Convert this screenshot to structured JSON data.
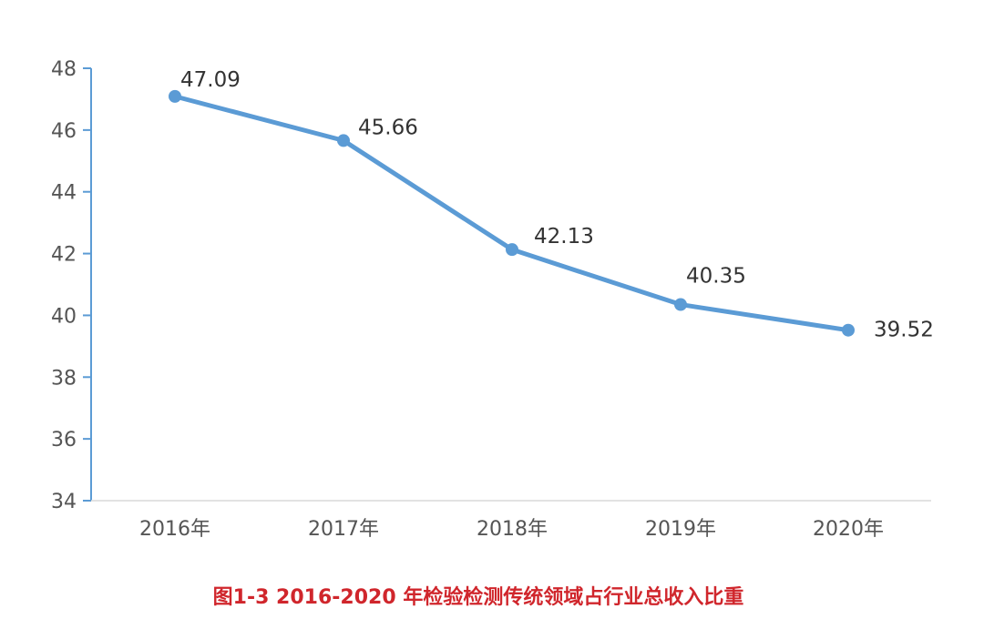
{
  "caption": "图1-3 2016-2020 年检验检测传统领域占行业总收入比重",
  "colors": {
    "series": "#5b9bd5",
    "axis": "#5b9bd5",
    "baseline": "#d9d9d9",
    "tick_text": "#555555",
    "label_text": "#333333",
    "caption": "#d0262c"
  },
  "chart_data": {
    "type": "line",
    "title": "",
    "xlabel": "",
    "ylabel": "",
    "categories": [
      "2016年",
      "2017年",
      "2018年",
      "2019年",
      "2020年"
    ],
    "series": [
      {
        "values": [
          47.09,
          45.66,
          42.13,
          40.35,
          39.52
        ],
        "labels": [
          "47.09",
          "45.66",
          "42.13",
          "40.35",
          "39.52"
        ]
      }
    ],
    "ylim": [
      34,
      48
    ],
    "yticks": [
      "34",
      "36",
      "38",
      "40",
      "42",
      "44",
      "46",
      "48"
    ],
    "grid": false,
    "legend": "none"
  }
}
